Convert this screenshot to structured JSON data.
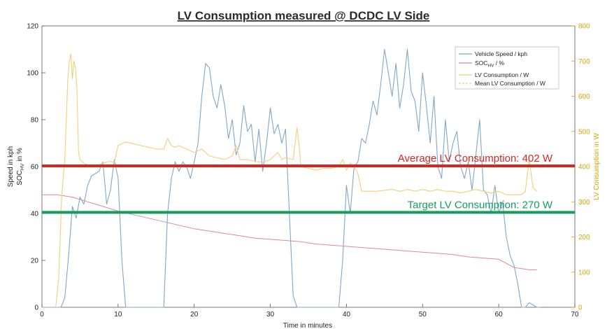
{
  "chart_data": {
    "type": "line",
    "title": "LV Consumption measured @ DCDC LV Side",
    "xlabel": "Time in minutes",
    "ylabel_left_line1": "Speed in kph",
    "ylabel_left_line2": "SOC",
    "ylabel_left_sub": "HV",
    "ylabel_left_suffix": " in %",
    "ylabel_right": "LV Consumption in W",
    "xlim": [
      0,
      70
    ],
    "ylim_left": [
      0,
      120
    ],
    "ylim_right": [
      0,
      800
    ],
    "xticks": [
      0,
      10,
      20,
      30,
      40,
      50,
      60,
      70
    ],
    "yticks_left": [
      0,
      20,
      40,
      60,
      80,
      100,
      120
    ],
    "yticks_right": [
      0,
      100,
      200,
      300,
      400,
      500,
      600,
      700,
      800
    ],
    "grid": false,
    "legend_position": "top-right",
    "legend": {
      "speed": "Vehicle Speed / kph",
      "soc_main": "SOC",
      "soc_sub": "HV",
      "soc_suffix": " / %",
      "lv": "LV Consumption / W",
      "mean": "Mean LV Consumption / W"
    },
    "colors": {
      "speed": "#7fa7c9",
      "soc": "#d98a9c",
      "lv": "#f2cf7a",
      "average_line": "#d7261e",
      "target_line": "#139e5a",
      "right_axis": "#d9a400"
    },
    "annotations": {
      "average_text": "Average LV Consumption: 402 W",
      "average_value": 402,
      "target_text": "Target LV Consumption: 270 W",
      "target_value": 270
    },
    "series": [
      {
        "name": "Vehicle Speed / kph",
        "axis": "left",
        "x": [
          0,
          2.5,
          3,
          3.5,
          4,
          4.5,
          5,
          5.5,
          6,
          6.5,
          7,
          7.5,
          8,
          8.5,
          9,
          9.5,
          10,
          10.5,
          11,
          11.5,
          12,
          16,
          16.5,
          17,
          17.5,
          18,
          18.5,
          19,
          19.5,
          20,
          20.5,
          21,
          21.5,
          22,
          22.5,
          23,
          23.5,
          24,
          24.5,
          25,
          25.5,
          26,
          26.5,
          27,
          27.5,
          28,
          28.5,
          29,
          29.5,
          30,
          30.5,
          31,
          31.5,
          32,
          32.5,
          33,
          33.5,
          34,
          39,
          39.5,
          40,
          40.5,
          41,
          41.5,
          42,
          42.5,
          43,
          43.5,
          44,
          44.5,
          45,
          45.5,
          46,
          46.5,
          47,
          47.5,
          48,
          48.5,
          49,
          49.5,
          50,
          50.5,
          51,
          51.5,
          52,
          52.5,
          53,
          53.5,
          54,
          54.5,
          55,
          55.5,
          56,
          56.5,
          57,
          57.5,
          58,
          58.5,
          59,
          59.5,
          60,
          60.5,
          61,
          61.5,
          62,
          62.5,
          63,
          63.5,
          64,
          64.5,
          65,
          65.5
        ],
        "y": [
          0,
          0,
          4,
          22,
          43,
          38,
          47,
          44,
          52,
          56,
          57,
          58,
          62,
          44,
          50,
          63,
          55,
          20,
          0,
          0,
          0,
          0,
          40,
          55,
          62,
          58,
          62,
          60,
          55,
          62,
          70,
          90,
          104,
          102,
          90,
          85,
          95,
          86,
          72,
          80,
          65,
          70,
          86,
          75,
          78,
          62,
          76,
          58,
          70,
          85,
          74,
          78,
          70,
          76,
          40,
          5,
          0,
          0,
          0,
          20,
          52,
          40,
          60,
          62,
          72,
          70,
          78,
          88,
          82,
          95,
          110,
          100,
          90,
          104,
          85,
          95,
          110,
          92,
          88,
          75,
          100,
          86,
          70,
          90,
          60,
          55,
          80,
          62,
          70,
          75,
          60,
          55,
          62,
          50,
          65,
          80,
          50,
          48,
          40,
          52,
          40,
          45,
          30,
          22,
          18,
          10,
          0,
          0,
          2,
          1,
          0,
          0
        ]
      },
      {
        "name": "SOC",
        "axis": "left",
        "x": [
          0,
          2,
          4,
          6,
          8,
          10,
          12,
          14,
          16,
          18,
          20,
          22,
          24,
          26,
          28,
          30,
          32,
          34,
          36,
          38,
          40,
          42,
          44,
          46,
          48,
          50,
          52,
          54,
          56,
          58,
          60,
          62,
          64,
          65
        ],
        "y": [
          48,
          48,
          47,
          45,
          43,
          41,
          39.5,
          38,
          36.5,
          35,
          33.5,
          32.5,
          31.5,
          30.5,
          29.5,
          29,
          28.5,
          28,
          27,
          26.5,
          26,
          25.5,
          25,
          24.5,
          24,
          23.5,
          23,
          22.5,
          21.5,
          21,
          20.5,
          17,
          16,
          16
        ]
      },
      {
        "name": "LV Consumption / W",
        "axis": "right",
        "x": [
          0,
          1.8,
          2.2,
          2.6,
          3,
          3.4,
          3.6,
          3.8,
          4,
          4.2,
          4.4,
          4.6,
          4.8,
          5,
          5.5,
          6,
          7,
          8,
          9,
          9.5,
          10,
          11,
          12,
          13,
          14,
          15,
          16,
          16.5,
          17,
          17.5,
          18,
          19,
          20,
          21,
          22,
          23,
          24,
          25,
          25.5,
          26,
          27,
          28,
          29,
          30,
          31,
          31.5,
          32,
          33,
          33.5,
          33.8,
          34,
          35,
          36,
          37,
          38,
          39,
          39.5,
          40,
          40.5,
          41,
          41.5,
          42,
          44,
          46,
          47,
          48,
          49,
          50,
          51,
          52,
          53,
          54,
          55,
          56,
          57,
          58,
          59,
          60,
          61,
          62,
          63,
          63.5,
          64,
          64.5,
          65
        ],
        "y": [
          null,
          0,
          80,
          320,
          420,
          650,
          700,
          720,
          650,
          700,
          680,
          620,
          440,
          420,
          410,
          405,
          400,
          410,
          415,
          410,
          460,
          470,
          465,
          460,
          455,
          450,
          450,
          480,
          460,
          455,
          460,
          450,
          440,
          450,
          430,
          425,
          420,
          430,
          460,
          420,
          420,
          415,
          412,
          420,
          440,
          420,
          425,
          420,
          510,
          460,
          400,
          395,
          390,
          395,
          395,
          400,
          420,
          390,
          410,
          400,
          380,
          330,
          330,
          335,
          330,
          335,
          330,
          335,
          330,
          335,
          330,
          330,
          325,
          330,
          335,
          330,
          325,
          330,
          320,
          320,
          320,
          330,
          420,
          340,
          330
        ]
      },
      {
        "name": "Mean LV Consumption / W",
        "axis": "right",
        "x": [
          0,
          65
        ],
        "y": [
          402,
          402
        ]
      }
    ]
  }
}
